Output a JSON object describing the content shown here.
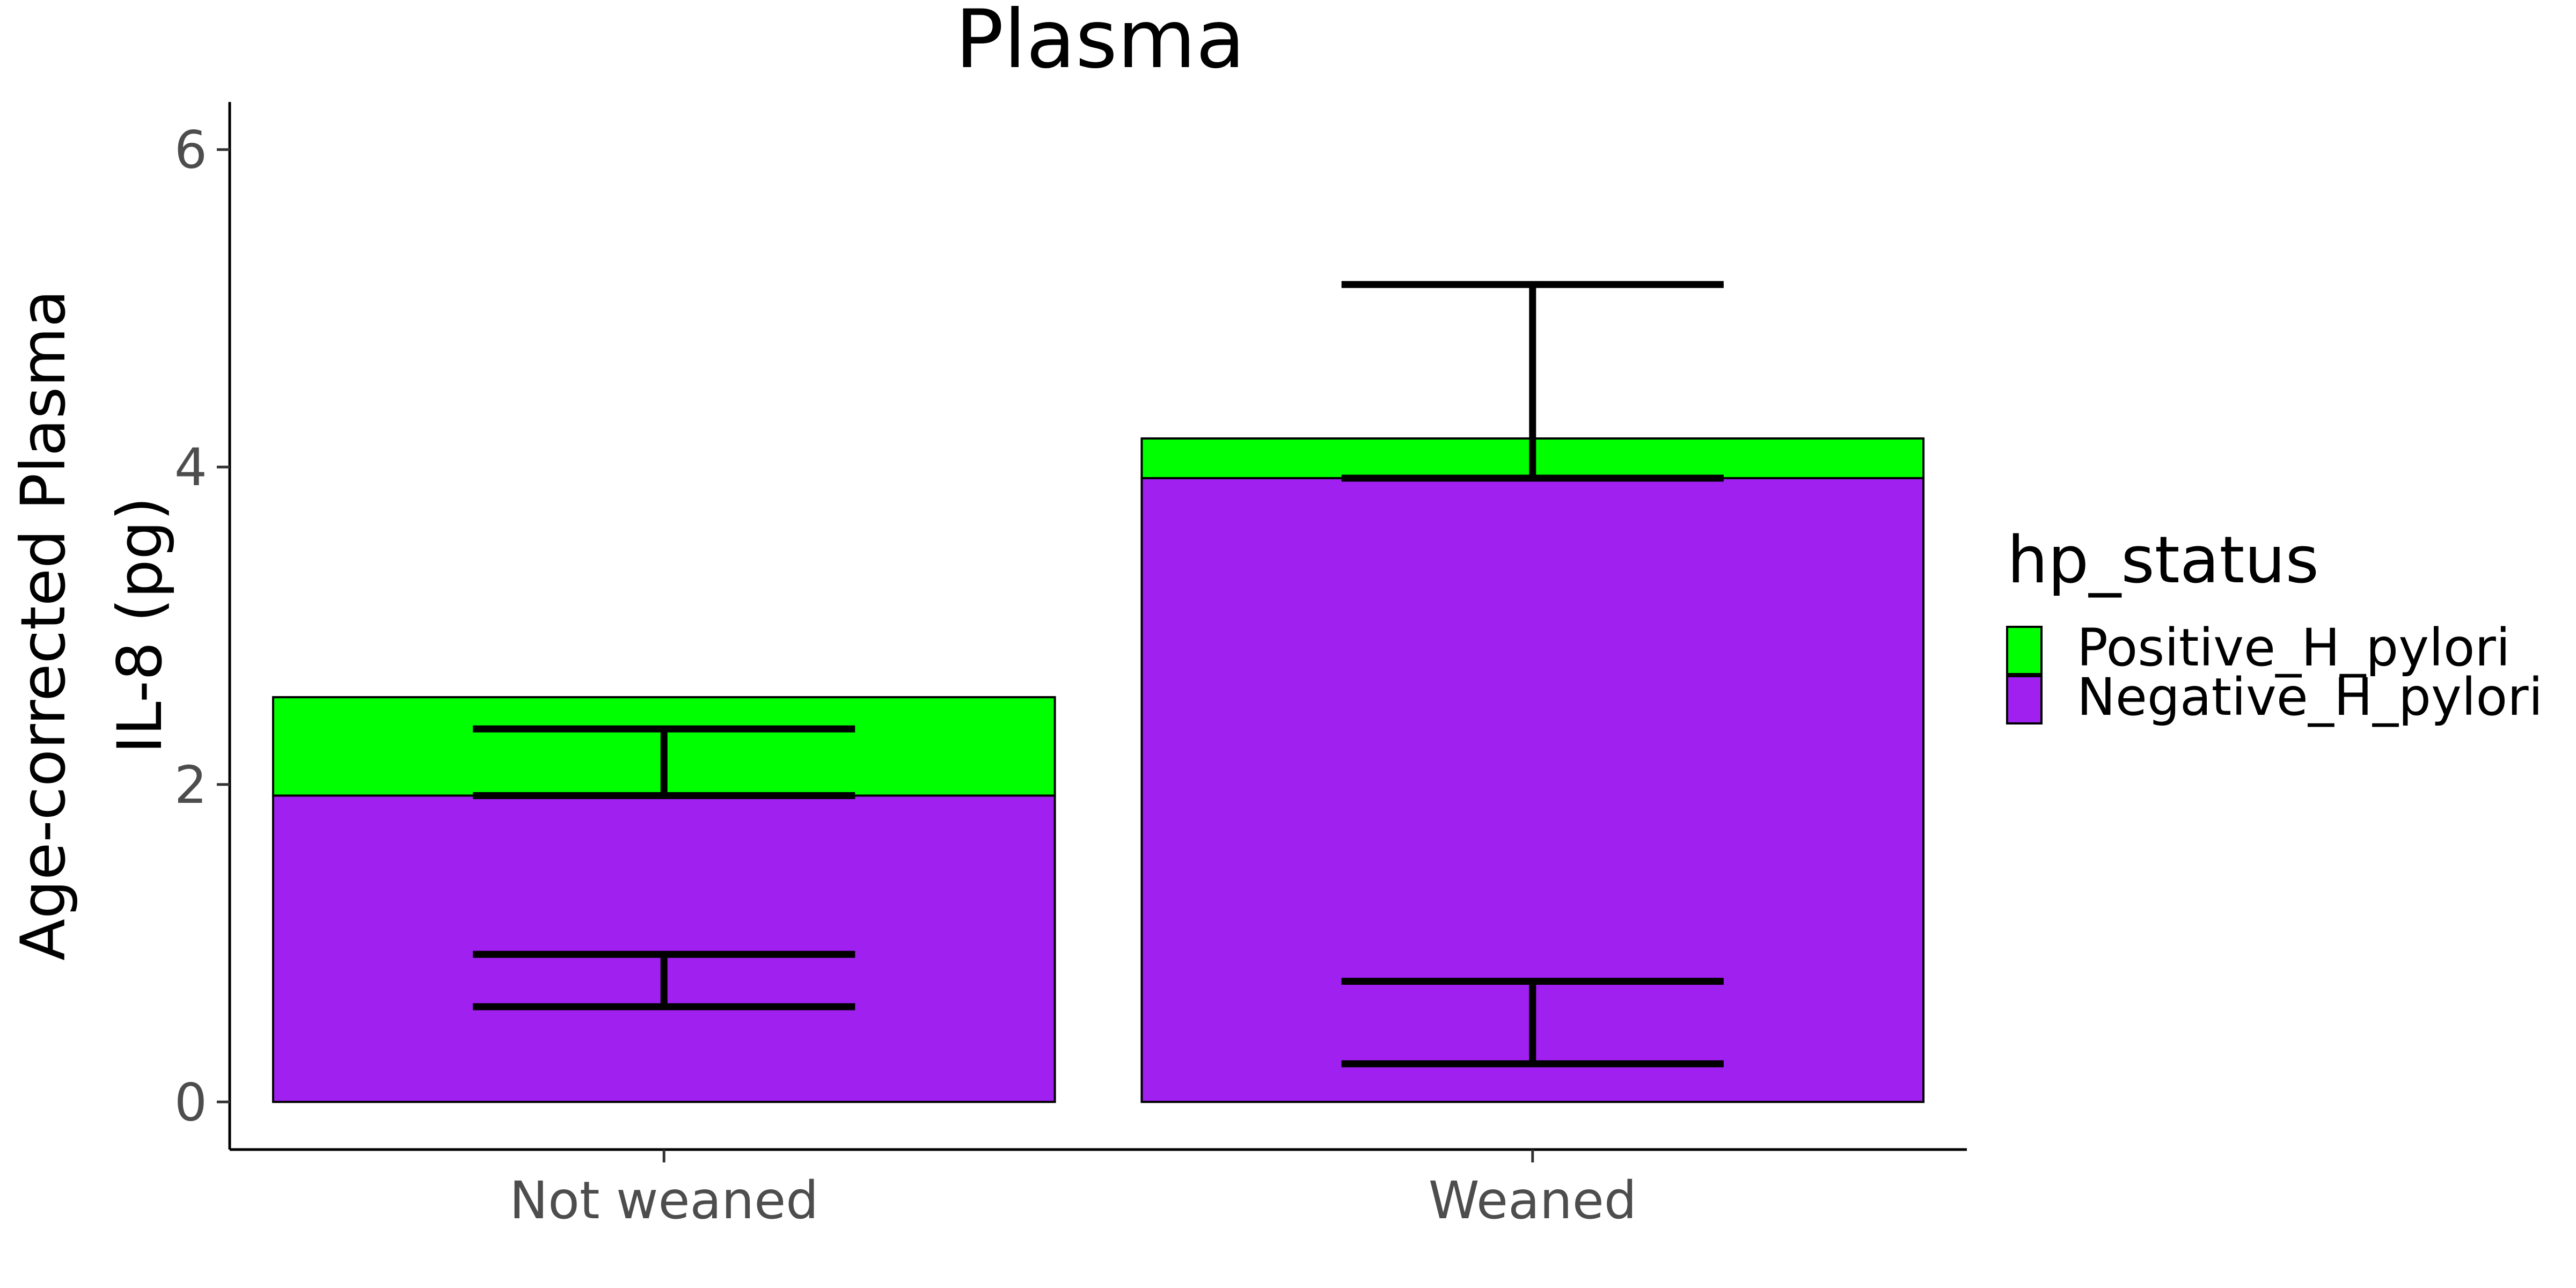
{
  "chart_data": {
    "type": "bar",
    "stacked": true,
    "title": "Plasma",
    "ylabel_lines": [
      "Age-corrected Plasma",
      "IL-8 (pg)"
    ],
    "xlabel": "",
    "categories": [
      "Not weaned",
      "Weaned"
    ],
    "ylim": [
      -0.3,
      6.3
    ],
    "yticks": [
      0,
      2,
      4,
      6
    ],
    "series": [
      {
        "name": "Negative_H_pylori",
        "color": "#a020f0",
        "values": [
          1.93,
          3.93
        ],
        "error": [
          [
            0.6,
            0.93
          ],
          [
            0.24,
            0.76
          ]
        ]
      },
      {
        "name": "Positive_H_pylori",
        "color": "#00ff00",
        "values": [
          0.62,
          0.25
        ],
        "error": [
          [
            1.93,
            2.35
          ],
          [
            3.93,
            5.15
          ]
        ]
      }
    ],
    "legend": {
      "title": "hp_status",
      "placement": "right",
      "order": [
        "Positive_H_pylori",
        "Negative_H_pylori"
      ]
    },
    "grid": false
  }
}
